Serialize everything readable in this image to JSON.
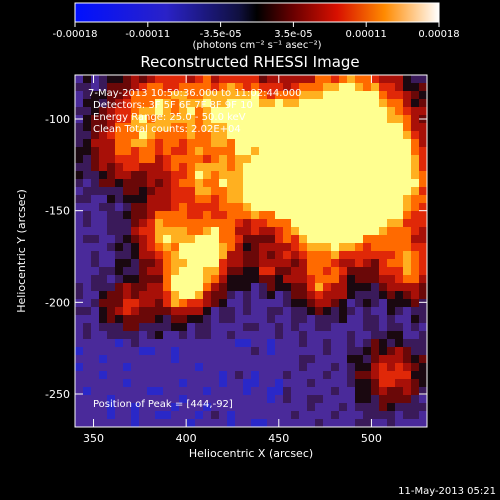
{
  "colorbar": {
    "ticks": [
      "-0.00018",
      "-0.00011",
      "-3.5e-05",
      "3.5e-05",
      "0.00011",
      "0.00018"
    ],
    "unit_label": "(photons cm⁻² s⁻¹ asec⁻²)"
  },
  "plot": {
    "title": "Reconstructed RHESSI Image",
    "xlabel": "Heliocentric X (arcsec)",
    "ylabel": "Heliocentric Y (arcsec)",
    "xticks": [
      "350",
      "400",
      "450",
      "500"
    ],
    "yticks": [
      "-100",
      "-150",
      "-200",
      "-250"
    ],
    "xlim": [
      340,
      530
    ],
    "ylim": [
      -268,
      -76
    ]
  },
  "annotations": {
    "time_range": "7-May-2013 10:50:36.000 to 11:02:44.000",
    "detectors": "Detectors: 3F 5F 6F 7F 8F 9F 10",
    "energy": "Energy Range: 25.0 - 50.0 keV",
    "method": "Clean     Total counts: 2.02E+04",
    "peak": "Position of Peak = [444,-92]"
  },
  "footer": {
    "date": "11-May-2013 05:21"
  },
  "colors": {
    "background": "#000000",
    "text": "#ffffff",
    "low": "#4a2a9a",
    "high": "#ffff90"
  }
}
